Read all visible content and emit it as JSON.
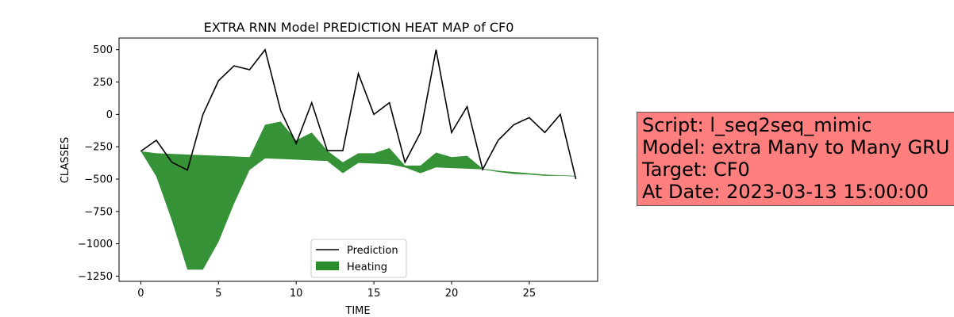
{
  "info_box": {
    "lines": [
      "Script: l_seq2seq_mimic",
      "Model: extra Many to Many GRU",
      "Target: CF0",
      "At Date: 2023-03-13 15:00:00"
    ]
  },
  "chart_data": {
    "type": "line",
    "title": "EXTRA RNN Model PREDICTION HEAT MAP of CF0",
    "xlabel": "TIME",
    "ylabel": "CLASSES",
    "xlim": [
      -1.4,
      29.4
    ],
    "ylim": [
      -1290,
      590
    ],
    "xticks": [
      0,
      5,
      10,
      15,
      20,
      25
    ],
    "yticks": [
      500,
      250,
      0,
      -250,
      -500,
      -750,
      -1000,
      -1250
    ],
    "ytick_labels": [
      "500",
      "250",
      "0",
      "−250",
      "−500",
      "−750",
      "−1000",
      "−1250"
    ],
    "grid": false,
    "legend_placement": "lower center",
    "colors": {
      "prediction": "#000000",
      "heating": "#2b8c2b"
    },
    "series": [
      {
        "name": "Prediction",
        "x": [
          0,
          1,
          2,
          3,
          4,
          5,
          6,
          7,
          8,
          9,
          10,
          11,
          12,
          13,
          14,
          15,
          16,
          17,
          18,
          19,
          20,
          21,
          22,
          23,
          24,
          25,
          26,
          27,
          28
        ],
        "values": [
          -285,
          -200,
          -370,
          -430,
          0,
          260,
          375,
          345,
          500,
          30,
          -225,
          90,
          -280,
          -280,
          315,
          0,
          90,
          -370,
          -140,
          500,
          -140,
          60,
          -425,
          -200,
          -80,
          -25,
          -140,
          0,
          -500
        ]
      },
      {
        "name": "Heating",
        "type": "area",
        "x": [
          0,
          1,
          2,
          3,
          4,
          5,
          6,
          7,
          8,
          9,
          10,
          11,
          12,
          13,
          14,
          15,
          16,
          17,
          18,
          19,
          20,
          21,
          22,
          23,
          24,
          25,
          26,
          27,
          28
        ],
        "upper": [
          -285,
          -300,
          -305,
          -310,
          -315,
          -320,
          -325,
          -330,
          -80,
          -55,
          -200,
          -140,
          -280,
          -370,
          -300,
          -300,
          -260,
          -395,
          -395,
          -295,
          -330,
          -320,
          -420,
          -435,
          -445,
          -455,
          -465,
          -470,
          -475
        ],
        "lower": [
          -285,
          -480,
          -820,
          -1200,
          -1200,
          -985,
          -690,
          -430,
          -340,
          -345,
          -350,
          -355,
          -360,
          -455,
          -375,
          -380,
          -385,
          -410,
          -455,
          -410,
          -415,
          -420,
          -425,
          -445,
          -460,
          -465,
          -475,
          -475,
          -480
        ]
      }
    ]
  }
}
